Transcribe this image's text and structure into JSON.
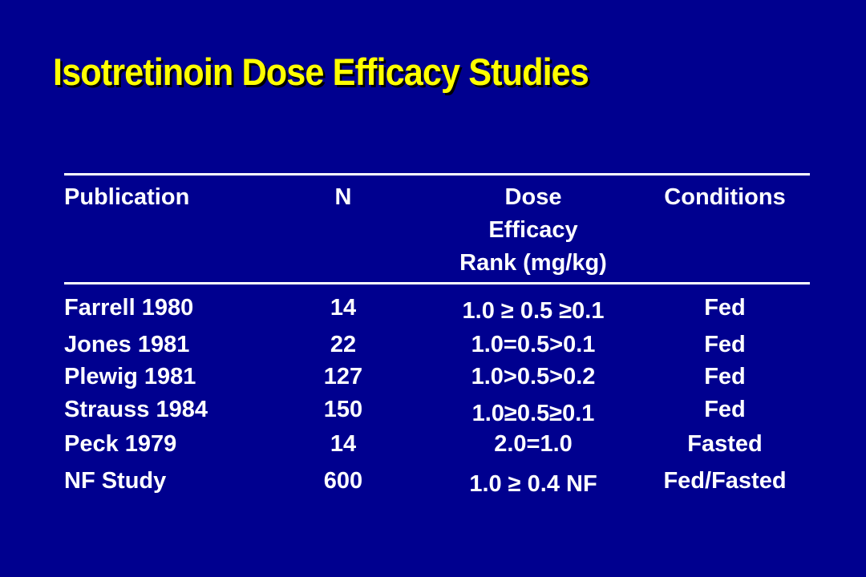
{
  "title": "Isotretinoin Dose Efficacy Studies",
  "table": {
    "headers": {
      "publication": "Publication",
      "n": "N",
      "dose_line1": "Dose",
      "dose_line2": "Efficacy",
      "dose_line3": "Rank (mg/kg)",
      "conditions": "Conditions"
    },
    "rows": [
      {
        "publication": "Farrell 1980",
        "n": "14",
        "dose": "1.0 ≥ 0.5 ≥0.1",
        "conditions": "Fed"
      },
      {
        "publication": "Jones 1981",
        "n": "22",
        "dose": "1.0=0.5>0.1",
        "conditions": "Fed"
      },
      {
        "publication": "Plewig 1981",
        "n": "127",
        "dose": "1.0>0.5>0.2",
        "conditions": "Fed"
      },
      {
        "publication": "Strauss 1984",
        "n": "150",
        "dose": "1.0≥0.5≥0.1",
        "conditions": "Fed"
      },
      {
        "publication": "Peck 1979",
        "n": "14",
        "dose": "2.0=1.0",
        "conditions": "Fasted"
      },
      {
        "publication": "NF Study",
        "n": "600",
        "dose": "1.0 ≥ 0.4 NF",
        "conditions": "Fed/Fasted"
      }
    ]
  },
  "colors": {
    "background": "#00008f",
    "title": "#ffff00",
    "text": "#ffffff"
  }
}
